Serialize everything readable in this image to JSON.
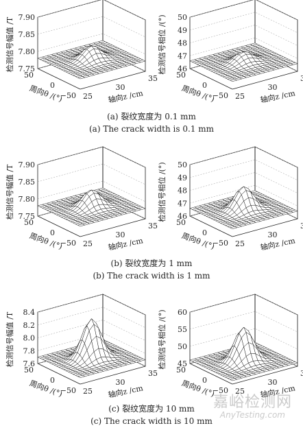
{
  "captions": [
    {
      "cn": "(a) 裂纹宽度为 0.1 mm",
      "en": "(a) The crack width is 0.1 mm"
    },
    {
      "cn": "(b) 裂纹宽度为 1 mm",
      "en": "(b) The crack width is 1 mm"
    },
    {
      "cn": "(c) 裂纹宽度为 10 mm",
      "en": "(c) The crack width is 10 mm"
    }
  ],
  "watermark": {
    "cn": "嘉峪检测网",
    "en": "AnyTesting.com"
  },
  "colors": {
    "line": "#1a1a1a",
    "surface": "#ffffff",
    "grid": "#9a9a9a"
  },
  "chart_data": [
    {
      "panel": "a",
      "type": "surface3d",
      "zlabel": "检测信号幅值 /T",
      "xlabel": "周向θ /(°)",
      "ylabel": "轴向z /cm",
      "x_ticks": [
        "50",
        "0",
        "−50"
      ],
      "y_ticks": [
        "25",
        "30",
        "35"
      ],
      "z_ticks": [
        "7.75",
        "7.80",
        "7.85",
        "7.90"
      ],
      "zlim": [
        7.75,
        7.9
      ],
      "baseline": 7.78,
      "peak": 7.82,
      "peak_x": 0,
      "peak_y": 30
    },
    {
      "panel": "a",
      "type": "surface3d",
      "zlabel": "检测信号相位 /(°)",
      "xlabel": "周向θ /(°)",
      "ylabel": "轴向z /cm",
      "x_ticks": [
        "50",
        "0",
        "−50"
      ],
      "y_ticks": [
        "25",
        "30",
        "35"
      ],
      "z_ticks": [
        "46",
        "47",
        "48",
        "49",
        "50"
      ],
      "zlim": [
        46,
        50
      ],
      "baseline": 46.6,
      "peak": 47.4,
      "peak_x": 0,
      "peak_y": 30
    },
    {
      "panel": "b",
      "type": "surface3d",
      "zlabel": "检测信号幅值 /T",
      "xlabel": "周向θ /(°)",
      "ylabel": "轴向z /cm",
      "x_ticks": [
        "50",
        "0",
        "−50"
      ],
      "y_ticks": [
        "25",
        "30",
        "35"
      ],
      "z_ticks": [
        "7.75",
        "7.80",
        "7.85",
        "7.90"
      ],
      "zlim": [
        7.75,
        7.9
      ],
      "baseline": 7.78,
      "peak": 7.83,
      "peak_x": 0,
      "peak_y": 30
    },
    {
      "panel": "b",
      "type": "surface3d",
      "zlabel": "检测信号相位 /(°)",
      "xlabel": "周向θ /(°)",
      "ylabel": "轴向z /cm",
      "x_ticks": [
        "50",
        "0",
        "−50"
      ],
      "y_ticks": [
        "25",
        "30",
        "35"
      ],
      "z_ticks": [
        "46",
        "47",
        "48",
        "49",
        "50"
      ],
      "zlim": [
        46,
        50
      ],
      "baseline": 46.6,
      "peak": 48.4,
      "peak_x": 0,
      "peak_y": 30
    },
    {
      "panel": "c",
      "type": "surface3d",
      "zlabel": "检测信号幅值 /T",
      "xlabel": "周向θ /(°)",
      "ylabel": "轴向z /cm",
      "x_ticks": [
        "50",
        "0",
        "−50"
      ],
      "y_ticks": [
        "25",
        "30",
        "35"
      ],
      "z_ticks": [
        "7.6",
        "7.8",
        "8.0",
        "8.2",
        "8.4"
      ],
      "zlim": [
        7.6,
        8.4
      ],
      "baseline": 7.7,
      "peak": 8.32,
      "peak_x": 0,
      "peak_y": 30
    },
    {
      "panel": "c",
      "type": "surface3d",
      "zlabel": "检测信号相位 /(°)",
      "xlabel": "周向θ /(°)",
      "ylabel": "轴向z /cm",
      "x_ticks": [
        "50",
        "0",
        "−50"
      ],
      "y_ticks": [
        "25",
        "30",
        "35"
      ],
      "z_ticks": [
        "45",
        "50",
        "55",
        "60"
      ],
      "zlim": [
        45,
        60
      ],
      "baseline": 46,
      "peak": 56,
      "peak_x": 0,
      "peak_y": 30
    }
  ]
}
